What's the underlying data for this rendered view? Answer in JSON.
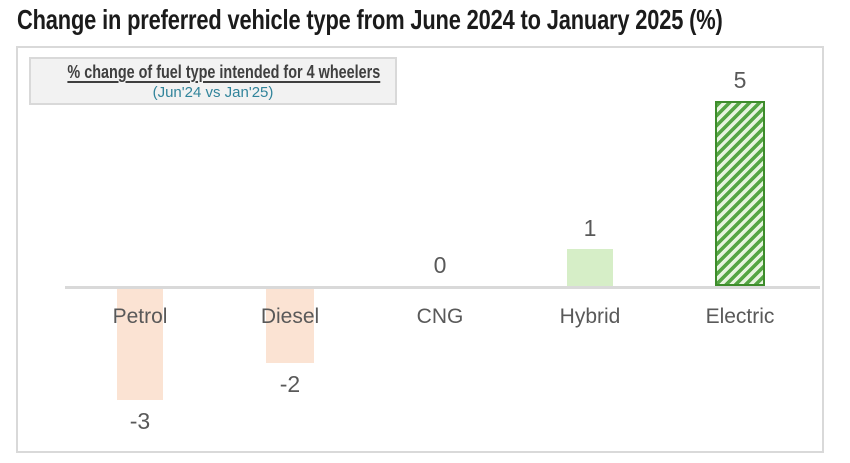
{
  "title": "Change in preferred vehicle type from June 2024 to January 2025 (%)",
  "legend_box": {
    "heading": "% change of fuel type intended for 4 wheelers",
    "subheading": "(Jun'24 vs Jan'25)"
  },
  "colors": {
    "title": "#1b1b1b",
    "legend_heading": "#3f3f3f",
    "legend_subheading": "#31849b",
    "legend_background": "#f2f2f2",
    "box_border": "#d9d9d9",
    "axis_line": "#d9d9d9",
    "labels": "#595959"
  },
  "chart_data": {
    "type": "bar",
    "categories": [
      "Petrol",
      "Diesel",
      "CNG",
      "Hybrid",
      "Electric"
    ],
    "values": [
      -3,
      -2,
      0,
      1,
      5
    ],
    "data_labels": [
      "-3",
      "-2",
      "0",
      "1",
      "5"
    ],
    "title": "Change in preferred vehicle type from June 2024 to January 2025 (%)",
    "xlabel": "",
    "ylabel": "",
    "ylim": [
      -3.5,
      5.5
    ],
    "grid": false,
    "legend_position": "none",
    "annotation_box": {
      "line1": "% change of fuel type intended for 4 wheelers",
      "line2": "(Jun'24 vs Jan'25)"
    },
    "bar_styles": [
      {
        "pattern": "solid",
        "fill": "#fbe3d3"
      },
      {
        "pattern": "solid",
        "fill": "#fbe3d3"
      },
      {
        "pattern": "none"
      },
      {
        "pattern": "solid",
        "fill": "#d6eec7"
      },
      {
        "pattern": "diagonal-hatch",
        "stripe_dark": "#55a544",
        "stripe_light": "#e7f4df",
        "border": "#3d8c2b"
      }
    ]
  }
}
